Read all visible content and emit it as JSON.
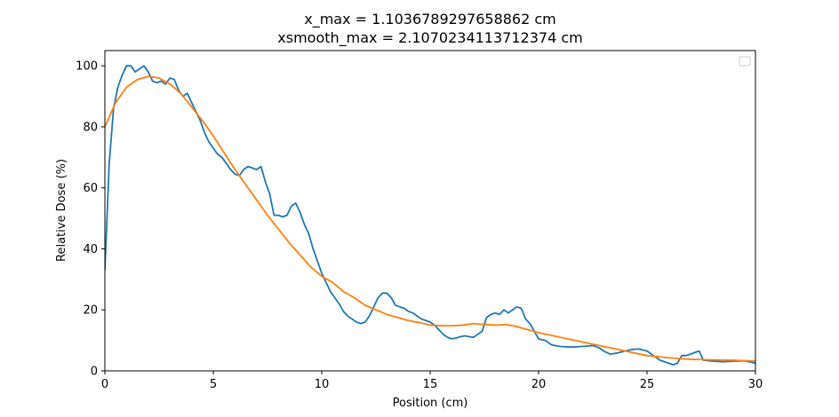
{
  "chart_data": {
    "type": "line",
    "title": [
      "x_max = 1.1036789297658862 cm",
      "xsmooth_max = 2.1070234113712374 cm"
    ],
    "xlabel": "Position (cm)",
    "ylabel": "Relative Dose (%)",
    "xlim": [
      0,
      30
    ],
    "ylim": [
      0,
      105
    ],
    "x_ticks": [
      0,
      5,
      10,
      15,
      20,
      25,
      30
    ],
    "y_ticks": [
      0,
      20,
      40,
      60,
      80,
      100
    ],
    "grid": false,
    "legend": {
      "placement": "top-right",
      "entries": []
    },
    "series": [
      {
        "color": "#1f77b4",
        "x": [
          0,
          0.2,
          0.4,
          0.6,
          0.8,
          1.0,
          1.2,
          1.4,
          1.6,
          1.8,
          2.0,
          2.2,
          2.4,
          2.6,
          2.8,
          3.0,
          3.2,
          3.4,
          3.6,
          3.8,
          4.0,
          4.2,
          4.4,
          4.6,
          4.8,
          5.0,
          5.2,
          5.4,
          5.6,
          5.8,
          6.0,
          6.2,
          6.4,
          6.6,
          6.8,
          7.0,
          7.2,
          7.4,
          7.6,
          7.8,
          8.0,
          8.2,
          8.4,
          8.6,
          8.8,
          9.0,
          9.2,
          9.4,
          9.6,
          9.8,
          10.0,
          10.2,
          10.4,
          10.6,
          10.8,
          11.0,
          11.2,
          11.4,
          11.6,
          11.8,
          12.0,
          12.2,
          12.4,
          12.6,
          12.8,
          13.0,
          13.2,
          13.4,
          13.6,
          13.8,
          14.0,
          14.2,
          14.4,
          14.6,
          14.8,
          15.0,
          15.2,
          15.4,
          15.6,
          15.8,
          16.0,
          16.2,
          16.4,
          16.6,
          16.8,
          17.0,
          17.2,
          17.4,
          17.6,
          17.8,
          18.0,
          18.2,
          18.4,
          18.6,
          18.8,
          19.0,
          19.2,
          19.4,
          19.6,
          19.8,
          20.0,
          20.3,
          20.6,
          21.0,
          21.5,
          22.0,
          22.5,
          22.8,
          23.0,
          23.3,
          23.6,
          24.0,
          24.3,
          24.6,
          25.0,
          25.3,
          25.6,
          26.0,
          26.2,
          26.4,
          26.6,
          26.8,
          27.0,
          27.2,
          27.4,
          27.6,
          28.0,
          28.5,
          29.0,
          29.5,
          30.0
        ],
        "y": [
          33,
          68,
          86,
          93,
          97,
          100,
          100,
          98,
          99,
          100,
          98,
          95,
          94.5,
          95,
          94,
          96,
          95.5,
          92,
          90,
          91,
          88,
          85,
          82,
          78,
          75,
          73,
          71,
          70,
          68,
          66,
          64.5,
          64,
          66,
          67,
          66.5,
          66,
          67,
          62,
          58,
          51,
          51,
          50.5,
          51,
          54,
          55,
          52,
          48,
          45,
          40,
          36,
          32,
          29,
          26,
          24,
          22,
          19.5,
          18,
          17,
          16,
          15.5,
          16,
          18,
          21,
          24,
          25.5,
          25.5,
          24,
          21.5,
          21,
          20.5,
          19.5,
          19,
          18,
          17,
          16.5,
          16,
          15,
          13.5,
          12,
          11,
          10.5,
          10.8,
          11.2,
          11.5,
          11.2,
          11,
          12,
          13,
          17.5,
          18.5,
          19,
          18.5,
          20,
          19,
          20,
          21,
          20.5,
          17,
          15.5,
          13,
          10.5,
          10,
          8.5,
          8,
          7.8,
          8,
          8.3,
          7.5,
          6.5,
          5.5,
          5.8,
          6.5,
          7,
          7.2,
          6.5,
          5,
          3.5,
          2.5,
          2,
          2.5,
          5,
          5,
          5.5,
          6,
          6.5,
          3.5,
          3.2,
          3,
          3.2,
          3.3,
          2.5
        ]
      },
      {
        "color": "#ff7f0e",
        "x": [
          0,
          0.5,
          1.0,
          1.5,
          2.0,
          2.5,
          3.0,
          3.5,
          4.0,
          4.5,
          5.0,
          5.5,
          6.0,
          6.5,
          7.0,
          7.5,
          8.0,
          8.5,
          9.0,
          9.5,
          10.0,
          10.5,
          11.0,
          11.5,
          12.0,
          12.5,
          13.0,
          13.5,
          14.0,
          14.5,
          15.0,
          15.5,
          16.0,
          16.5,
          17.0,
          17.5,
          18.0,
          18.5,
          19.0,
          19.5,
          20.0,
          21.0,
          22.0,
          23.0,
          24.0,
          25.0,
          26.0,
          27.0,
          28.0,
          29.0,
          30.0
        ],
        "y": [
          80,
          88,
          93,
          95.5,
          96.5,
          96,
          94,
          91,
          86.5,
          82,
          77,
          71.5,
          66,
          61,
          56,
          51,
          46.5,
          42,
          38,
          34,
          31,
          29,
          26,
          24,
          21.5,
          20,
          18.5,
          17.5,
          16.5,
          15.8,
          15,
          14.8,
          14.8,
          15,
          15.5,
          15.2,
          15,
          15.2,
          14.5,
          13.5,
          12.5,
          11,
          9.5,
          8,
          6.5,
          5,
          4.3,
          3.8,
          3.6,
          3.5,
          3.2
        ]
      }
    ]
  }
}
